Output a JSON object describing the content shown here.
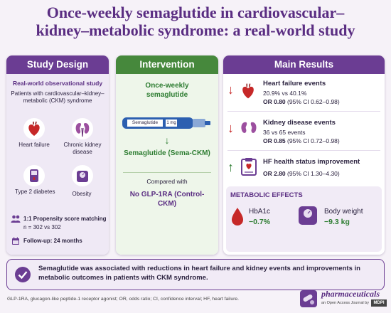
{
  "title": {
    "line1": "Once-weekly semaglutide in cardiovascular–",
    "line2": "kidney–metabolic syndrome: a real-world study"
  },
  "study_design": {
    "header": "Study Design",
    "type": "Real-world observational study",
    "population": "Patients with cardiovascular–kidney–metabolic (CKM) syndrome",
    "conditions": [
      "Heart failure",
      "Chronic kidney disease",
      "Type 2 diabetes",
      "Obesity"
    ],
    "matching_title": "1:1 Propensity score matching",
    "matching_n": "n = 302 vs 302",
    "followup": "Follow-up: 24 months"
  },
  "intervention": {
    "header": "Intervention",
    "drug": "Once-weekly semaglutide",
    "pen_label": "Semaglutide",
    "pen_dose": "1 mg",
    "group1": "Semaglutide (Sema-CKM)",
    "compared": "Compared with",
    "group2": "No GLP-1RA (Control-CKM)"
  },
  "results": {
    "header": "Main Results",
    "items": [
      {
        "title": "Heart failure events",
        "line1": "20.9% vs 40.1%",
        "or_label": "OR 0.80",
        "ci": "(95% CI 0.62–0.98)",
        "direction": "down"
      },
      {
        "title": "Kidney disease events",
        "line1": "36 vs 65 events",
        "or_label": "OR 0.85",
        "ci": "(95% CI 0.72–0.98)",
        "direction": "down"
      },
      {
        "title": "HF health status improvement",
        "line1": "",
        "or_label": "OR 2.80",
        "ci": "(95% CI 1.30–4.30)",
        "direction": "up"
      }
    ],
    "metabolic_header": "METABOLIC EFFECTS",
    "hba1c_label": "HbA1c",
    "hba1c_value": "−0.7%",
    "weight_label": "Body weight",
    "weight_value": "−9.3 kg"
  },
  "conclusion": "Semaglutide was associated with reductions in heart failure and kidney events and improvements in metabolic outcomes in patients with CKM syndrome.",
  "footnote": "GLP-1RA, glucagon-like peptide-1 receptor agonist; OR, odds ratio; CI, confidence interval; HF, heart failure.",
  "journal": {
    "name": "pharmaceuticals",
    "tagline": "an Open Access Journal by",
    "publisher": "MDPI"
  },
  "colors": {
    "purple": "#6b3d93",
    "green": "#46883c",
    "red": "#c62828"
  }
}
